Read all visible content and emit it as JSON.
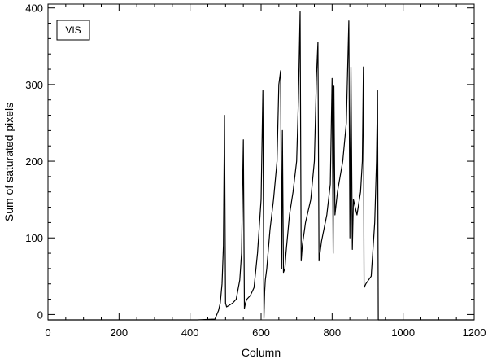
{
  "chart_data": {
    "type": "line",
    "title": "",
    "xlabel": "Column",
    "ylabel": "Sum of saturated pixels",
    "xlim": [
      0,
      1200
    ],
    "ylim": [
      -7,
      405
    ],
    "x_ticks": [
      0,
      200,
      400,
      600,
      800,
      1000,
      1200
    ],
    "y_ticks": [
      0,
      100,
      200,
      300,
      400
    ],
    "grid": false,
    "legend": {
      "position": "top-left",
      "entries": [
        "VIS"
      ]
    },
    "line_color": "#000000",
    "series": [
      {
        "name": "VIS",
        "x": [
          0,
          420,
          470,
          480,
          485,
          490,
          494,
          497,
          500,
          503,
          510,
          520,
          530,
          540,
          545,
          550,
          553,
          556,
          560,
          570,
          580,
          590,
          600,
          605,
          608,
          610,
          612,
          616,
          625,
          635,
          645,
          650,
          655,
          658,
          660,
          663,
          667,
          670,
          680,
          690,
          700,
          705,
          710,
          713,
          716,
          725,
          740,
          750,
          756,
          760,
          763,
          770,
          785,
          795,
          800,
          803,
          805,
          808,
          815,
          830,
          840,
          847,
          850,
          853,
          857,
          860,
          870,
          880,
          885,
          888,
          890,
          895,
          910,
          920,
          925,
          928,
          930,
          1200
        ],
        "y": [
          -7,
          -7,
          -6,
          5,
          15,
          40,
          90,
          260,
          15,
          10,
          12,
          15,
          20,
          45,
          80,
          228,
          8,
          15,
          20,
          25,
          35,
          80,
          150,
          292,
          -5,
          30,
          45,
          60,
          110,
          150,
          200,
          300,
          318,
          60,
          240,
          55,
          60,
          80,
          130,
          160,
          200,
          280,
          395,
          70,
          90,
          120,
          150,
          200,
          310,
          355,
          70,
          95,
          130,
          170,
          308,
          80,
          298,
          130,
          160,
          200,
          250,
          383,
          100,
          323,
          85,
          150,
          130,
          160,
          200,
          323,
          35,
          40,
          50,
          120,
          200,
          292,
          -7,
          -7
        ]
      }
    ]
  }
}
